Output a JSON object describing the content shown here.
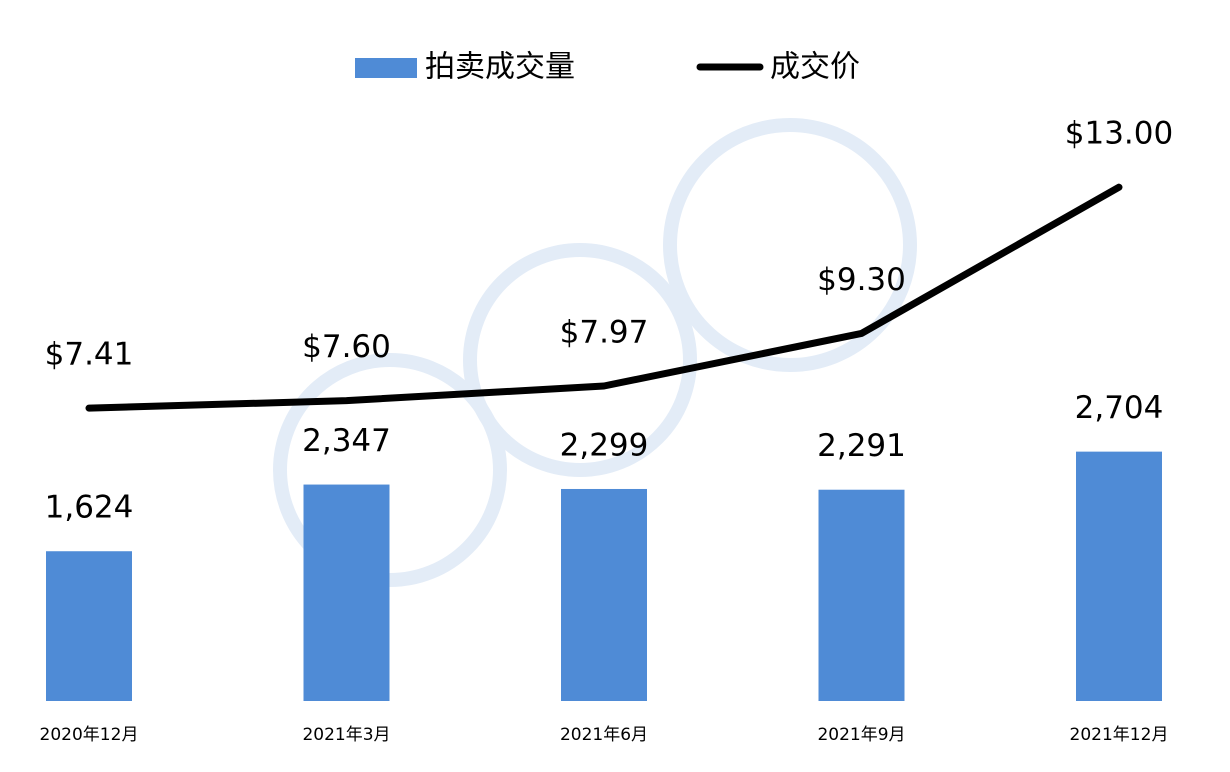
{
  "chart_data": {
    "type": "bar-line",
    "categories": [
      "2020年12月",
      "2021年3月",
      "2021年6月",
      "2021年9月",
      "2021年12月"
    ],
    "series": [
      {
        "name": "拍卖成交量",
        "type": "bar",
        "color": "#4f8bd6",
        "values": [
          1624,
          2347,
          2299,
          2291,
          2704
        ],
        "value_labels": [
          "1,624",
          "2,347",
          "2,299",
          "2,291",
          "2,704"
        ]
      },
      {
        "name": "成交价",
        "type": "line",
        "axis": "y2",
        "color": "#000000",
        "values": [
          7.41,
          7.6,
          7.97,
          9.3,
          13.0
        ],
        "value_labels": [
          "$7.41",
          "$7.60",
          "$7.97",
          "$9.30",
          "$13.00"
        ]
      }
    ],
    "ylim": [
      0,
      6300
    ],
    "y2lim": [
      0,
      14.7
    ],
    "grid": false
  }
}
